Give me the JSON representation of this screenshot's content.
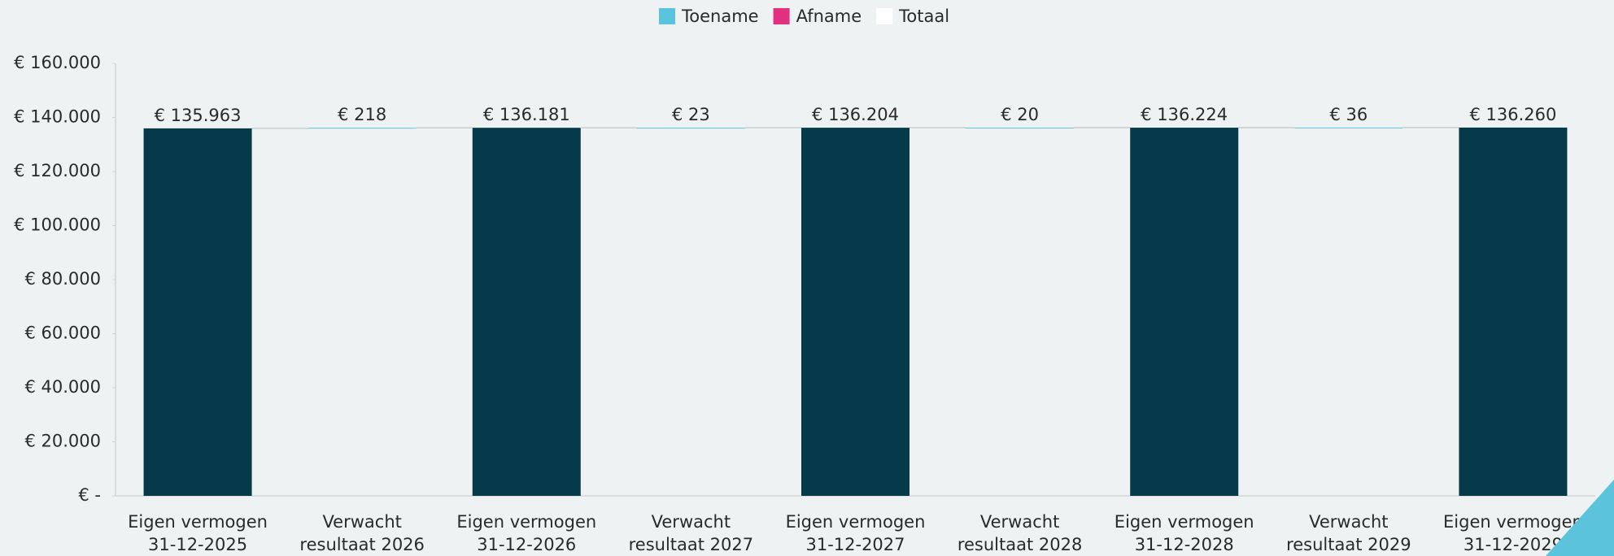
{
  "chart_data": {
    "type": "waterfall",
    "categories": [
      [
        "Eigen vermogen",
        "31-12-2025"
      ],
      [
        "Verwacht",
        "resultaat 2026"
      ],
      [
        "Eigen vermogen",
        "31-12-2026"
      ],
      [
        "Verwacht",
        "resultaat 2027"
      ],
      [
        "Eigen vermogen",
        "31-12-2027"
      ],
      [
        "Verwacht",
        "resultaat 2028"
      ],
      [
        "Eigen vermogen",
        "31-12-2028"
      ],
      [
        "Verwacht",
        "resultaat 2029"
      ],
      [
        "Eigen vermogen",
        "31-12-2029"
      ]
    ],
    "values": [
      135963,
      218,
      136181,
      23,
      136204,
      20,
      136224,
      36,
      136260
    ],
    "value_labels": [
      "€ 135.963",
      "€ 218",
      "€ 136.181",
      "€ 23",
      "€ 136.204",
      "€ 20",
      "€ 136.224",
      "€ 36",
      "€ 136.260"
    ],
    "kinds": [
      "Totaal",
      "Toename",
      "Totaal",
      "Toename",
      "Totaal",
      "Toename",
      "Totaal",
      "Toename",
      "Totaal"
    ],
    "series": [
      {
        "name": "Toename",
        "color": "#5bc3dc"
      },
      {
        "name": "Afname",
        "color": "#e0307f"
      },
      {
        "name": "Totaal",
        "color": "#ffffff"
      }
    ],
    "total_bar_color": "#053a4a",
    "ylim": [
      0,
      160000
    ],
    "yticks": [
      {
        "value": 0,
        "label": "€ -"
      },
      {
        "value": 20000,
        "label": "€ 20.000"
      },
      {
        "value": 40000,
        "label": "€ 40.000"
      },
      {
        "value": 60000,
        "label": "€ 60.000"
      },
      {
        "value": 80000,
        "label": "€ 80.000"
      },
      {
        "value": 100000,
        "label": "€ 100.000"
      },
      {
        "value": 120000,
        "label": "€ 120.000"
      },
      {
        "value": 140000,
        "label": "€ 140.000"
      },
      {
        "value": 160000,
        "label": "€ 160.000"
      }
    ],
    "legend": "top"
  }
}
